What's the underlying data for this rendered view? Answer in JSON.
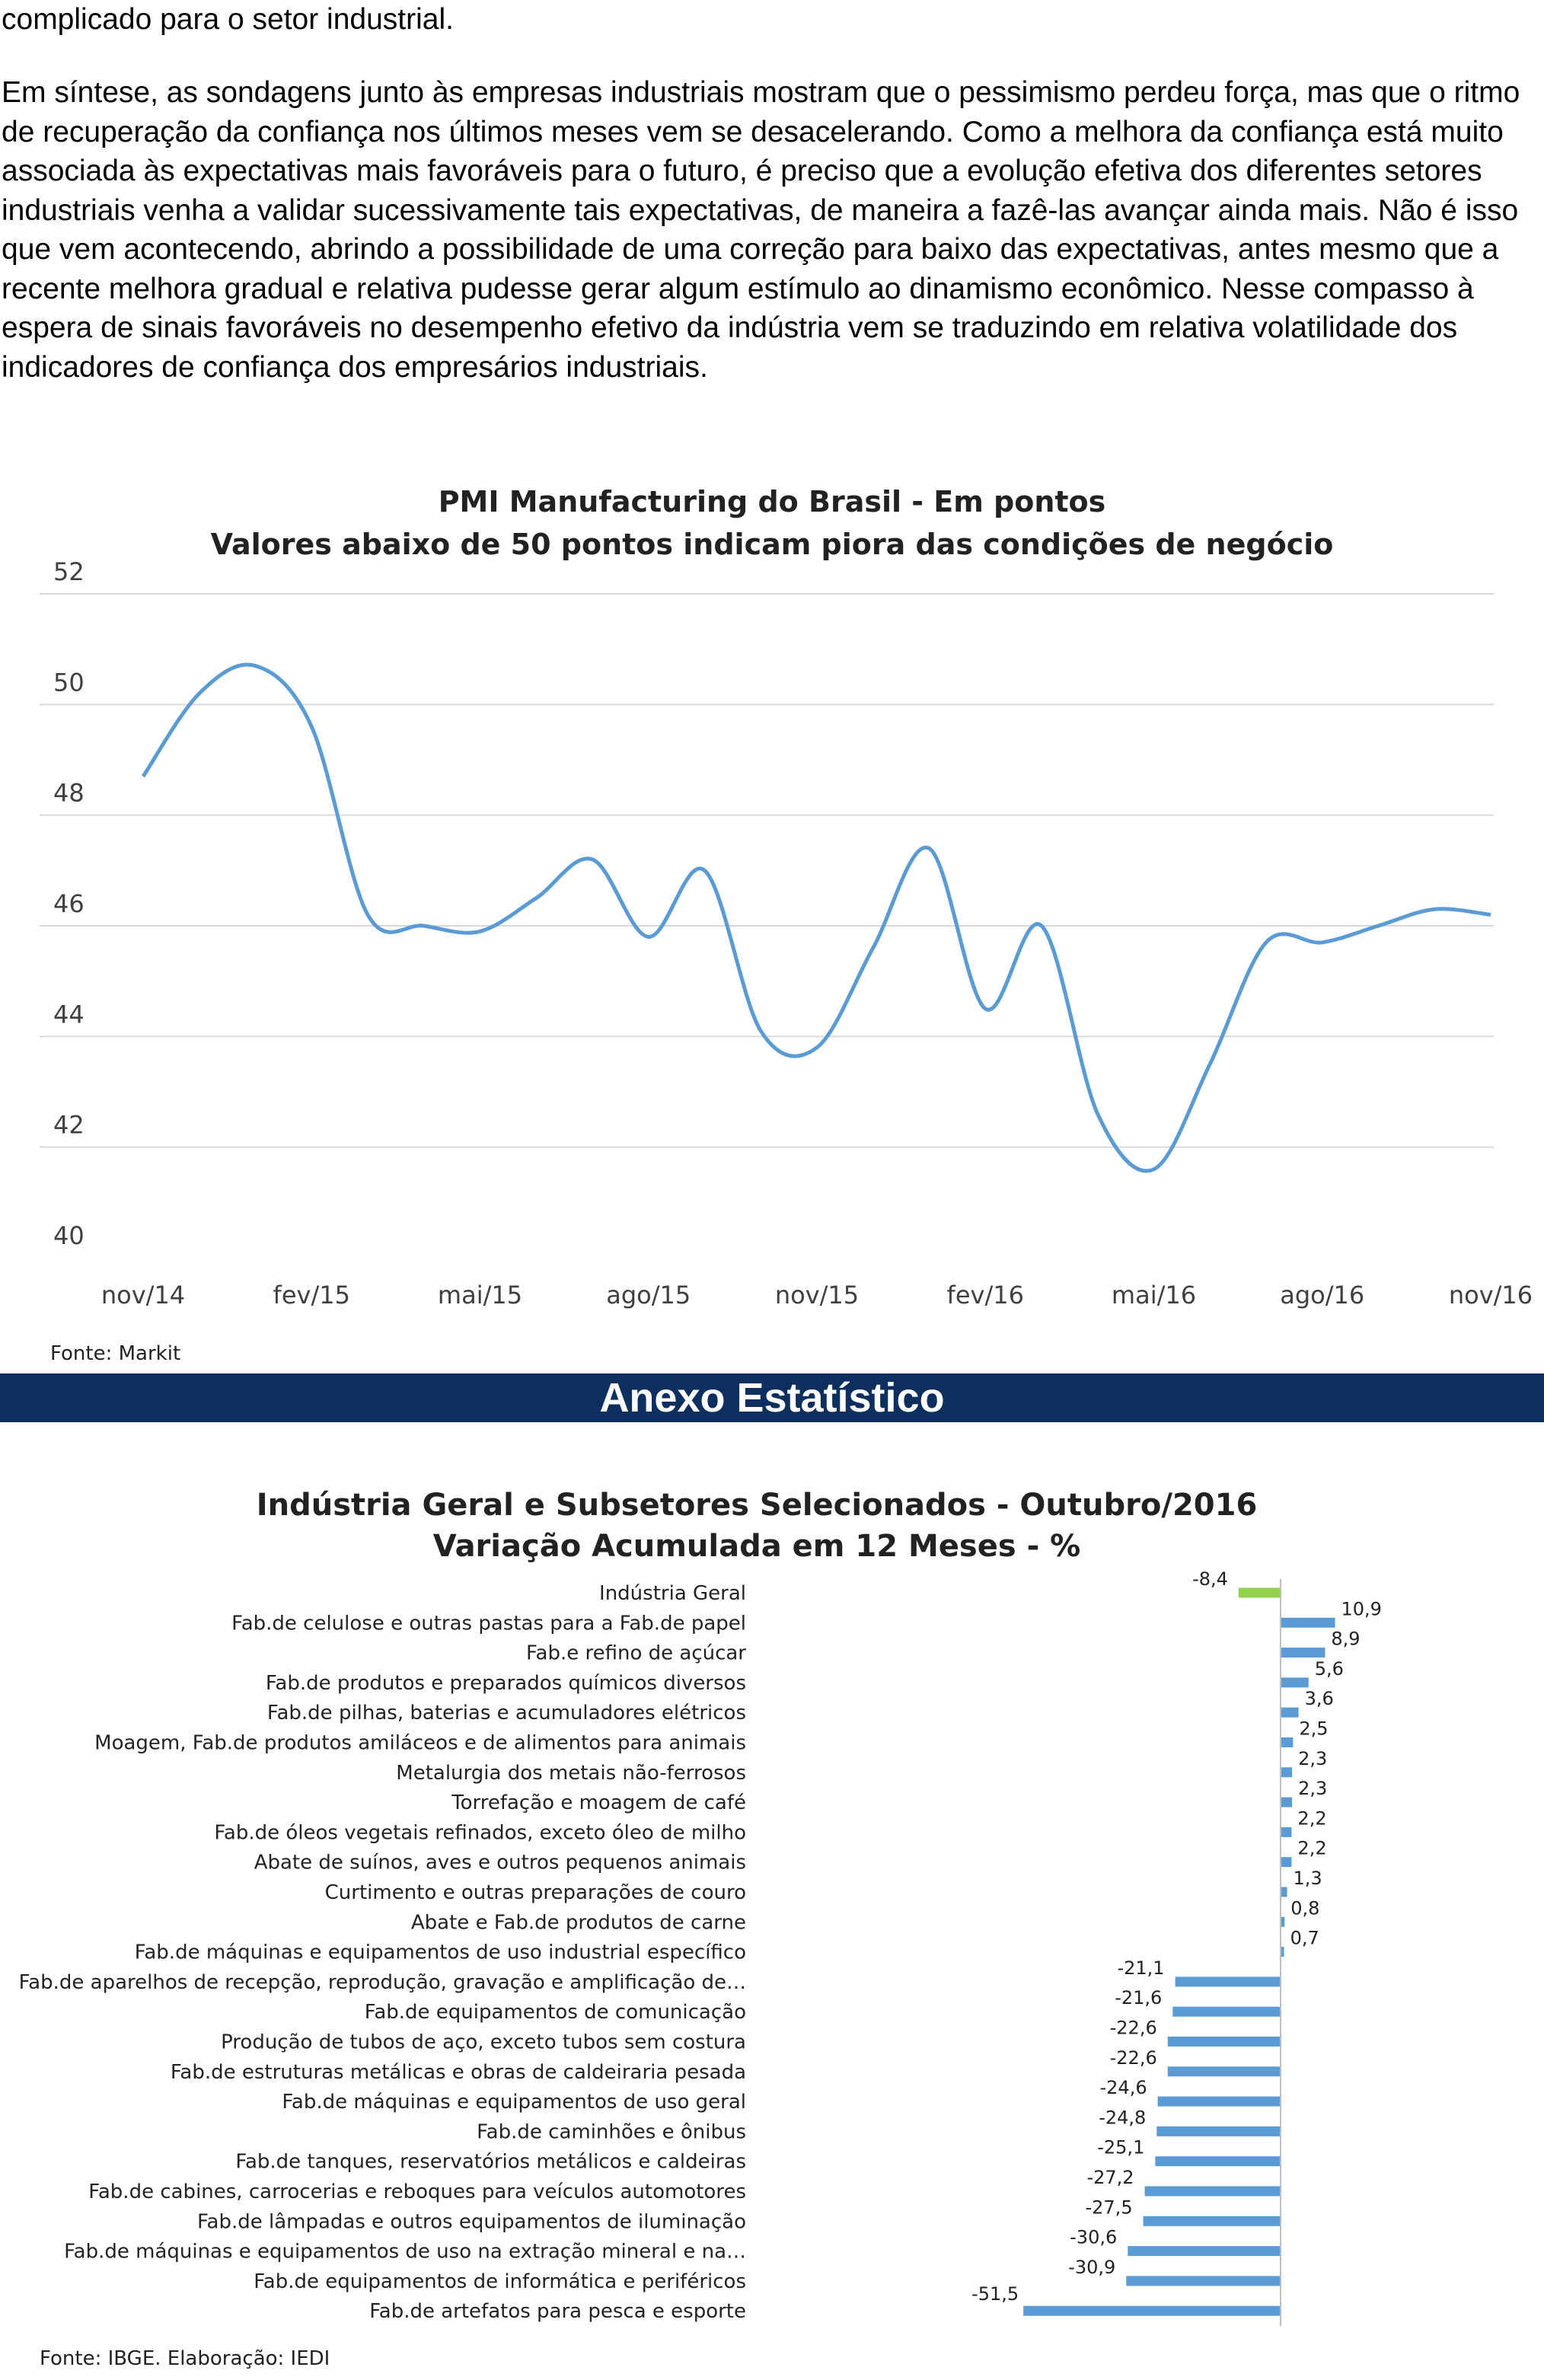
{
  "text": {
    "p1": "complicado para o setor industrial.",
    "p2": "Em síntese, as sondagens junto às empresas industriais mostram que o pessimismo perdeu força, mas que o ritmo de recuperação da confiança nos últimos meses vem se desacelerando. Como a melhora da confiança está muito associada às expectativas mais favoráveis para o futuro, é preciso que a evolução efetiva dos diferentes setores industriais venha a validar sucessivamente tais expectativas, de maneira a fazê-las avançar ainda mais. Não é isso que vem acontecendo, abrindo a possibilidade de uma correção para baixo das expectativas, antes mesmo que a recente melhora gradual e relativa pudesse gerar algum estímulo ao dinamismo econômico. Nesse compasso à espera de sinais favoráveis no desempenho efetivo da indústria vem se traduzindo em relativa volatilidade dos indicadores de confiança dos empresários industriais."
  },
  "banner": "Anexo Estatístico",
  "chart_data": [
    {
      "type": "line",
      "title": "PMI Manufacturing do Brasil - Em pontos",
      "subtitle": "Valores abaixo de 50 pontos indicam piora das condições de negócio",
      "source": "Fonte: Markit",
      "ylim": [
        40,
        52
      ],
      "yticks": [
        "40",
        "42",
        "44",
        "46",
        "48",
        "50",
        "52"
      ],
      "xticks": [
        "nov/14",
        "fev/15",
        "mai/15",
        "ago/15",
        "nov/15",
        "fev/16",
        "mai/16",
        "ago/16",
        "nov/16"
      ],
      "grid": true,
      "color": "#5b9bd5",
      "series": [
        {
          "values": [
            48.7,
            50.2,
            50.7,
            49.6,
            46.2,
            46.0,
            45.9,
            46.5,
            47.2,
            45.8,
            47.0,
            44.1,
            43.8,
            45.6,
            47.4,
            44.5,
            46.0,
            42.6,
            41.6,
            43.5,
            45.7,
            45.7,
            46.0,
            46.3,
            46.2
          ]
        }
      ]
    },
    {
      "type": "bar",
      "orientation": "horizontal",
      "title": "Indústria Geral e Subsetores Selecionados - Outubro/2016",
      "subtitle": "Variação Acumulada em 12 Meses - %",
      "source": "Fonte: IBGE. Elaboração: IEDI",
      "categories": [
        "Indústria Geral",
        "Fab.de celulose e outras pastas para a Fab.de papel",
        "Fab.e refino de açúcar",
        "Fab.de produtos e preparados químicos diversos",
        "Fab.de pilhas, baterias e acumuladores elétricos",
        "Moagem, Fab.de produtos amiláceos e de alimentos para animais",
        "Metalurgia dos metais não-ferrosos",
        "Torrefação e moagem de café",
        "Fab.de óleos vegetais refinados, exceto óleo de milho",
        "Abate de suínos, aves e outros pequenos animais",
        "Curtimento e outras preparações de couro",
        "Abate e Fab.de produtos de carne",
        "Fab.de máquinas e equipamentos de uso industrial específico",
        "Fab.de aparelhos de recepção, reprodução, gravação e amplificação de…",
        "Fab.de equipamentos de comunicação",
        "Produção de tubos de aço, exceto tubos sem costura",
        "Fab.de estruturas metálicas e obras de caldeiraria pesada",
        "Fab.de máquinas e equipamentos de uso geral",
        "Fab.de caminhões e ônibus",
        "Fab.de tanques, reservatórios metálicos e caldeiras",
        "Fab.de cabines, carrocerias e reboques para veículos automotores",
        "Fab.de lâmpadas e outros equipamentos de iluminação",
        "Fab.de máquinas e equipamentos de uso na extração mineral e na…",
        "Fab.de equipamentos de informática e periféricos",
        "Fab.de artefatos para pesca e esporte"
      ],
      "values": [
        -8.4,
        10.9,
        8.9,
        5.6,
        3.6,
        2.5,
        2.3,
        2.3,
        2.2,
        2.2,
        1.3,
        0.8,
        0.7,
        -21.1,
        -21.6,
        -22.6,
        -22.6,
        -24.6,
        -24.8,
        -25.1,
        -27.2,
        -27.5,
        -30.6,
        -30.9,
        -51.5
      ],
      "labels": [
        "-8,4",
        "10,9",
        "8,9",
        "5,6",
        "3,6",
        "2,5",
        "2,3",
        "2,3",
        "2,2",
        "2,2",
        "1,3",
        "0,8",
        "0,7",
        "-21,1",
        "-21,6",
        "-22,6",
        "-22,6",
        "-24,6",
        "-24,8",
        "-25,1",
        "-27,2",
        "-27,5",
        "-30,6",
        "-30,9",
        "-51,5"
      ],
      "colors": {
        "highlight": "#92d050",
        "default": "#5b9bd5"
      }
    }
  ]
}
